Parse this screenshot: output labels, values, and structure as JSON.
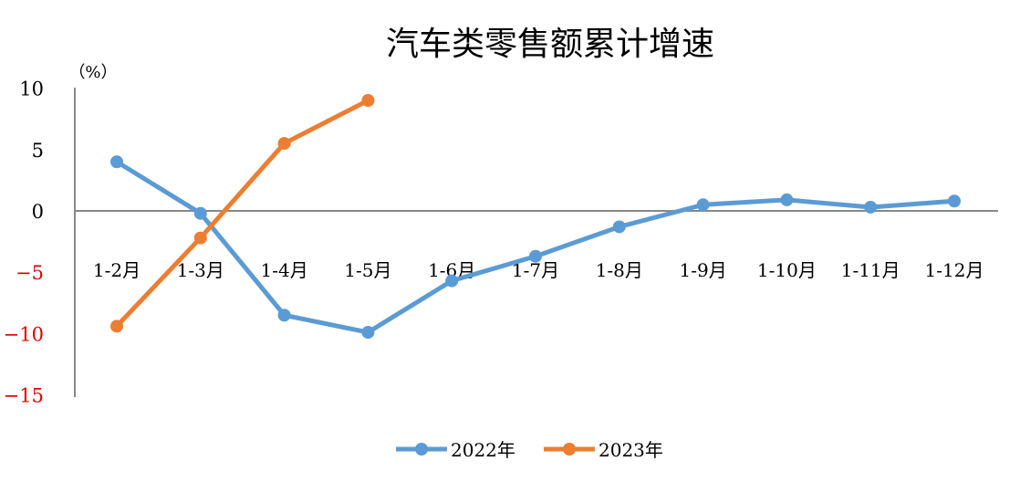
{
  "chart_data": {
    "type": "line",
    "title": "汽车类零售额累计增速",
    "ylabel": "（%）",
    "xlabel": "",
    "ylim": [
      -15,
      10
    ],
    "yticks": [
      10,
      5,
      0,
      -5,
      -10,
      -15
    ],
    "negative_tick_color": "#e00000",
    "categories": [
      "1-2月",
      "1-3月",
      "1-4月",
      "1-5月",
      "1-6月",
      "1-7月",
      "1-8月",
      "1-9月",
      "1-10月",
      "1-11月",
      "1-12月"
    ],
    "series": [
      {
        "name": "2022年",
        "color": "#5b9bd5",
        "values": [
          4.0,
          -0.2,
          -8.5,
          -9.9,
          -5.7,
          -3.7,
          -1.3,
          0.5,
          0.9,
          0.3,
          0.8
        ]
      },
      {
        "name": "2023年",
        "color": "#ed7d31",
        "values": [
          -9.4,
          -2.2,
          5.5,
          9.0,
          null,
          null,
          null,
          null,
          null,
          null,
          null
        ]
      }
    ],
    "legend_position": "bottom",
    "grid": false
  }
}
